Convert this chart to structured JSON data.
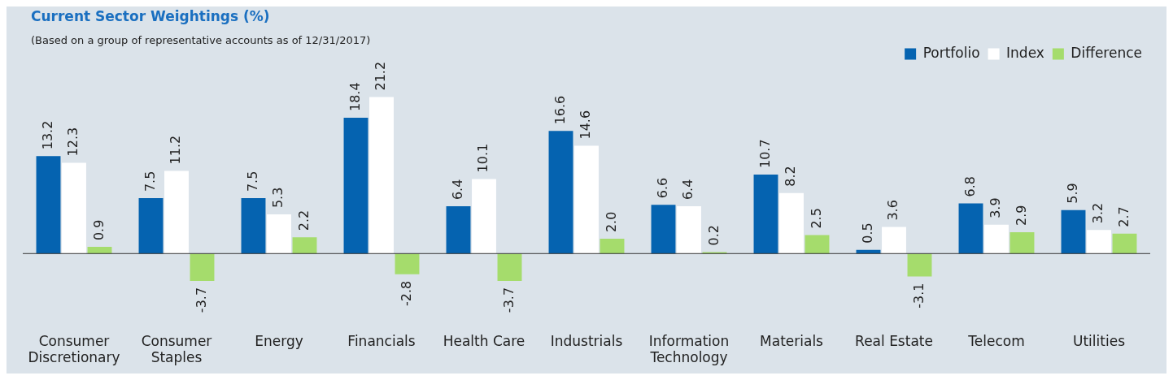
{
  "chart_data": {
    "type": "bar",
    "title": "Current Sector Weightings (%)",
    "subtitle": "(Based on a group of representative accounts as of 12/31/2017)",
    "categories": [
      "Consumer Discretionary",
      "Consumer Staples",
      "Energy",
      "Financials",
      "Health Care",
      "Industrials",
      "Information Technology",
      "Materials",
      "Real Estate",
      "Telecom",
      "Utilities"
    ],
    "series": [
      {
        "name": "Portfolio",
        "color": "#0563b0",
        "values": [
          13.2,
          7.5,
          7.5,
          18.4,
          6.4,
          16.6,
          6.6,
          10.7,
          0.5,
          6.8,
          5.9
        ],
        "value_labels": [
          "13.2",
          "7.5",
          "7.5",
          "18.4",
          "6.4",
          "16.6",
          "6.6",
          "10.7",
          "0.5",
          "6.8",
          "5.9"
        ]
      },
      {
        "name": "Index",
        "color": "#ffffff",
        "values": [
          12.3,
          11.2,
          5.3,
          21.2,
          10.1,
          14.6,
          6.4,
          8.2,
          3.6,
          3.9,
          3.2
        ],
        "value_labels": [
          "12.3",
          "11.2",
          "5.3",
          "21.2",
          "10.1",
          "14.6",
          "6.4",
          "8.2",
          "3.6",
          "3.9",
          "3.2"
        ]
      },
      {
        "name": "Difference",
        "color": "#a5dc6c",
        "values": [
          0.9,
          -3.7,
          2.2,
          -2.8,
          -3.7,
          2.0,
          0.2,
          2.5,
          -3.1,
          2.9,
          2.7
        ],
        "value_labels": [
          "0.9",
          "-3.7",
          "2.2",
          "-2.8",
          "-3.7",
          "2.0",
          "0.2",
          "2.5",
          "-3.1",
          "2.9",
          "2.7"
        ]
      }
    ],
    "legend": "top right"
  }
}
